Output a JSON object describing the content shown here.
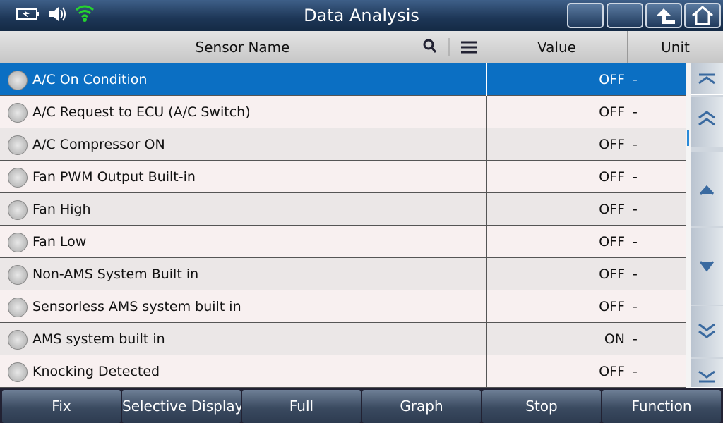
{
  "header": {
    "title": "Data Analysis"
  },
  "table": {
    "columns": [
      "Sensor Name",
      "Value",
      "Unit"
    ],
    "rows": [
      [
        "A/C On Condition",
        "OFF",
        "-"
      ],
      [
        "A/C Request to ECU (A/C Switch)",
        "OFF",
        "-"
      ],
      [
        "A/C Compressor ON",
        "OFF",
        "-"
      ],
      [
        "Fan PWM Output Built-in",
        "OFF",
        "-"
      ],
      [
        "Fan High",
        "OFF",
        "-"
      ],
      [
        "Fan Low",
        "OFF",
        "-"
      ],
      [
        "Non-AMS System Built in",
        "OFF",
        "-"
      ],
      [
        "Sensorless AMS system built in",
        "OFF",
        "-"
      ],
      [
        "AMS system built in",
        "ON",
        "-"
      ],
      [
        "Knocking Detected",
        "OFF",
        "-"
      ]
    ]
  },
  "buttons": [
    "Fix",
    "Selective Display",
    "Full",
    "Graph",
    "Stop",
    "Function"
  ]
}
